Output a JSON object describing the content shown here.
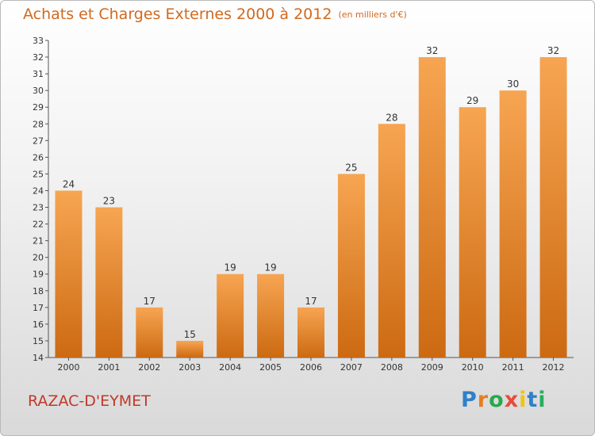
{
  "title": "Achats et Charges Externes 2000 à 2012",
  "subtitle": "(en milliers d'€)",
  "commune": "RAZAC-D'EYMET",
  "logo": {
    "letters": [
      "P",
      "r",
      "o",
      "x",
      "i",
      "t",
      "i"
    ],
    "colors": [
      "#2f80c8",
      "#e67e22",
      "#2aa84a",
      "#e74c3c",
      "#f1c40f",
      "#2f80c8",
      "#27ae60"
    ]
  },
  "colors": {
    "bar_light": "#f7a552",
    "bar_dark": "#cc6a12",
    "axis": "#555555",
    "grid": "#999999"
  },
  "chart_data": {
    "type": "bar",
    "title": "Achats et Charges Externes 2000 à 2012",
    "subtitle": "(en milliers d'€)",
    "categories": [
      "2000",
      "2001",
      "2002",
      "2003",
      "2004",
      "2005",
      "2006",
      "2007",
      "2008",
      "2009",
      "2010",
      "2011",
      "2012"
    ],
    "values": [
      24,
      23,
      17,
      15,
      19,
      19,
      17,
      25,
      28,
      32,
      29,
      30,
      32
    ],
    "ylim": [
      14,
      33
    ],
    "yticks": [
      14,
      15,
      16,
      17,
      18,
      19,
      20,
      21,
      22,
      23,
      24,
      25,
      26,
      27,
      28,
      29,
      30,
      31,
      32,
      33
    ],
    "grid": false,
    "legend": "none"
  }
}
